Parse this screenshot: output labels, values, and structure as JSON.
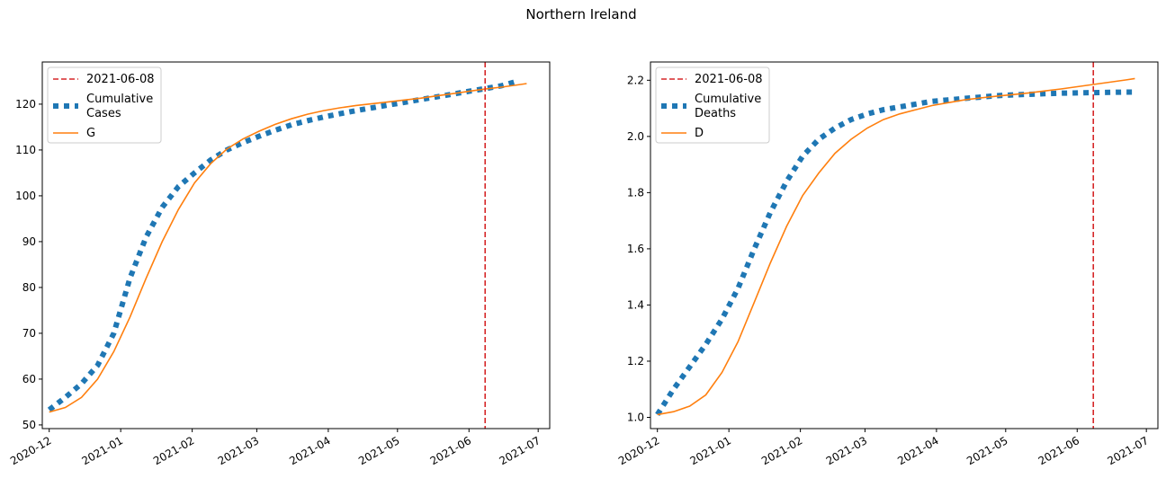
{
  "figure": {
    "title": "Northern Ireland"
  },
  "colors": {
    "cutoff": "#d62728",
    "observed": "#1f77b4",
    "fit": "#ff7f0e"
  },
  "x_ticks": [
    "2020-12",
    "2021-01",
    "2021-02",
    "2021-03",
    "2021-04",
    "2021-05",
    "2021-06",
    "2021-07"
  ],
  "x_tick_dates": [
    "2020-12-01",
    "2021-01-01",
    "2021-02-01",
    "2021-03-01",
    "2021-04-01",
    "2021-05-01",
    "2021-06-01",
    "2021-07-01"
  ],
  "chart_data": [
    {
      "type": "line",
      "x_domain": [
        "2020-11-28",
        "2021-07-06"
      ],
      "ylim": [
        49.2,
        129.2
      ],
      "y_ticks": [
        50,
        60,
        70,
        80,
        90,
        100,
        110,
        120
      ],
      "y_tick_labels": [
        "50",
        "60",
        "70",
        "80",
        "90",
        "100",
        "110",
        "120"
      ],
      "grid": false,
      "legend": {
        "position": "top-left",
        "entries": [
          {
            "name": "2021-06-08",
            "style": "dashed",
            "color": "#d62728"
          },
          {
            "name": "Cumulative\nCases",
            "style": "dotted",
            "color": "#1f77b4"
          },
          {
            "name": "G",
            "style": "solid",
            "color": "#ff7f0e"
          }
        ]
      },
      "cutoff_date": "2021-06-08",
      "series": [
        {
          "name": "Cumulative\nCases",
          "style": "dotted",
          "dates": [
            "2020-12-01",
            "2020-12-08",
            "2020-12-15",
            "2020-12-22",
            "2020-12-29",
            "2021-01-05",
            "2021-01-12",
            "2021-01-19",
            "2021-01-26",
            "2021-02-02",
            "2021-02-09",
            "2021-02-16",
            "2021-02-23",
            "2021-03-02",
            "2021-03-09",
            "2021-03-16",
            "2021-03-23",
            "2021-03-30",
            "2021-04-06",
            "2021-04-13",
            "2021-04-20",
            "2021-04-27",
            "2021-05-04",
            "2021-05-11",
            "2021-05-18",
            "2021-05-25",
            "2021-06-01",
            "2021-06-08",
            "2021-06-15",
            "2021-06-22"
          ],
          "values": [
            53.3,
            56.0,
            59.0,
            63.0,
            70.0,
            82.0,
            91.0,
            97.5,
            102.0,
            105.0,
            107.8,
            110.0,
            111.6,
            113.0,
            114.3,
            115.5,
            116.4,
            117.2,
            117.9,
            118.6,
            119.2,
            119.8,
            120.4,
            121.0,
            121.6,
            122.2,
            122.8,
            123.4,
            124.0,
            125.0
          ]
        },
        {
          "name": "G",
          "style": "solid",
          "dates": [
            "2020-12-01",
            "2020-12-08",
            "2020-12-15",
            "2020-12-22",
            "2020-12-29",
            "2021-01-05",
            "2021-01-12",
            "2021-01-19",
            "2021-01-26",
            "2021-02-02",
            "2021-02-09",
            "2021-02-16",
            "2021-02-23",
            "2021-03-02",
            "2021-03-09",
            "2021-03-16",
            "2021-03-23",
            "2021-03-30",
            "2021-04-06",
            "2021-04-13",
            "2021-04-20",
            "2021-04-27",
            "2021-05-04",
            "2021-05-11",
            "2021-05-18",
            "2021-05-25",
            "2021-06-01",
            "2021-06-08",
            "2021-06-15",
            "2021-06-22",
            "2021-06-26"
          ],
          "values": [
            52.8,
            53.8,
            56.0,
            60.0,
            66.0,
            73.5,
            82.0,
            90.0,
            97.0,
            102.8,
            107.0,
            110.2,
            112.4,
            114.1,
            115.6,
            116.8,
            117.8,
            118.6,
            119.2,
            119.7,
            120.1,
            120.5,
            120.9,
            121.3,
            121.8,
            122.3,
            122.8,
            123.3,
            123.7,
            124.2,
            124.5
          ]
        }
      ]
    },
    {
      "type": "line",
      "x_domain": [
        "2020-11-28",
        "2021-07-06"
      ],
      "ylim": [
        0.96,
        2.265
      ],
      "y_ticks": [
        1.0,
        1.2,
        1.4,
        1.6,
        1.8,
        2.0,
        2.2
      ],
      "y_tick_labels": [
        "1.0",
        "1.2",
        "1.4",
        "1.6",
        "1.8",
        "2.0",
        "2.2"
      ],
      "grid": false,
      "legend": {
        "position": "top-left",
        "entries": [
          {
            "name": "2021-06-08",
            "style": "dashed",
            "color": "#d62728"
          },
          {
            "name": "Cumulative\nDeaths",
            "style": "dotted",
            "color": "#1f77b4"
          },
          {
            "name": "D",
            "style": "solid",
            "color": "#ff7f0e"
          }
        ]
      },
      "cutoff_date": "2021-06-08",
      "series": [
        {
          "name": "Cumulative\nDeaths",
          "style": "dotted",
          "dates": [
            "2020-12-01",
            "2020-12-08",
            "2020-12-15",
            "2020-12-22",
            "2020-12-29",
            "2021-01-05",
            "2021-01-12",
            "2021-01-19",
            "2021-01-26",
            "2021-02-02",
            "2021-02-09",
            "2021-02-16",
            "2021-02-23",
            "2021-03-02",
            "2021-03-09",
            "2021-03-16",
            "2021-03-23",
            "2021-03-30",
            "2021-04-06",
            "2021-04-13",
            "2021-04-20",
            "2021-04-27",
            "2021-05-04",
            "2021-05-11",
            "2021-05-18",
            "2021-05-25",
            "2021-06-01",
            "2021-06-08",
            "2021-06-15",
            "2021-06-22",
            "2021-06-26"
          ],
          "values": [
            1.01,
            1.1,
            1.18,
            1.26,
            1.35,
            1.46,
            1.6,
            1.73,
            1.84,
            1.93,
            1.99,
            2.03,
            2.06,
            2.08,
            2.095,
            2.105,
            2.115,
            2.125,
            2.13,
            2.135,
            2.14,
            2.145,
            2.148,
            2.15,
            2.152,
            2.154,
            2.155,
            2.156,
            2.157,
            2.158,
            2.158
          ]
        },
        {
          "name": "D",
          "style": "solid",
          "dates": [
            "2020-12-01",
            "2020-12-08",
            "2020-12-15",
            "2020-12-22",
            "2020-12-29",
            "2021-01-05",
            "2021-01-12",
            "2021-01-19",
            "2021-01-26",
            "2021-02-02",
            "2021-02-09",
            "2021-02-16",
            "2021-02-23",
            "2021-03-02",
            "2021-03-09",
            "2021-03-16",
            "2021-03-23",
            "2021-03-30",
            "2021-04-06",
            "2021-04-13",
            "2021-04-20",
            "2021-04-27",
            "2021-05-04",
            "2021-05-11",
            "2021-05-18",
            "2021-05-25",
            "2021-06-01",
            "2021-06-08",
            "2021-06-15",
            "2021-06-22",
            "2021-06-26"
          ],
          "values": [
            1.01,
            1.02,
            1.04,
            1.08,
            1.16,
            1.27,
            1.41,
            1.55,
            1.68,
            1.79,
            1.87,
            1.94,
            1.99,
            2.03,
            2.06,
            2.08,
            2.095,
            2.11,
            2.12,
            2.13,
            2.137,
            2.143,
            2.149,
            2.155,
            2.162,
            2.169,
            2.177,
            2.185,
            2.193,
            2.201,
            2.206
          ]
        }
      ]
    }
  ]
}
